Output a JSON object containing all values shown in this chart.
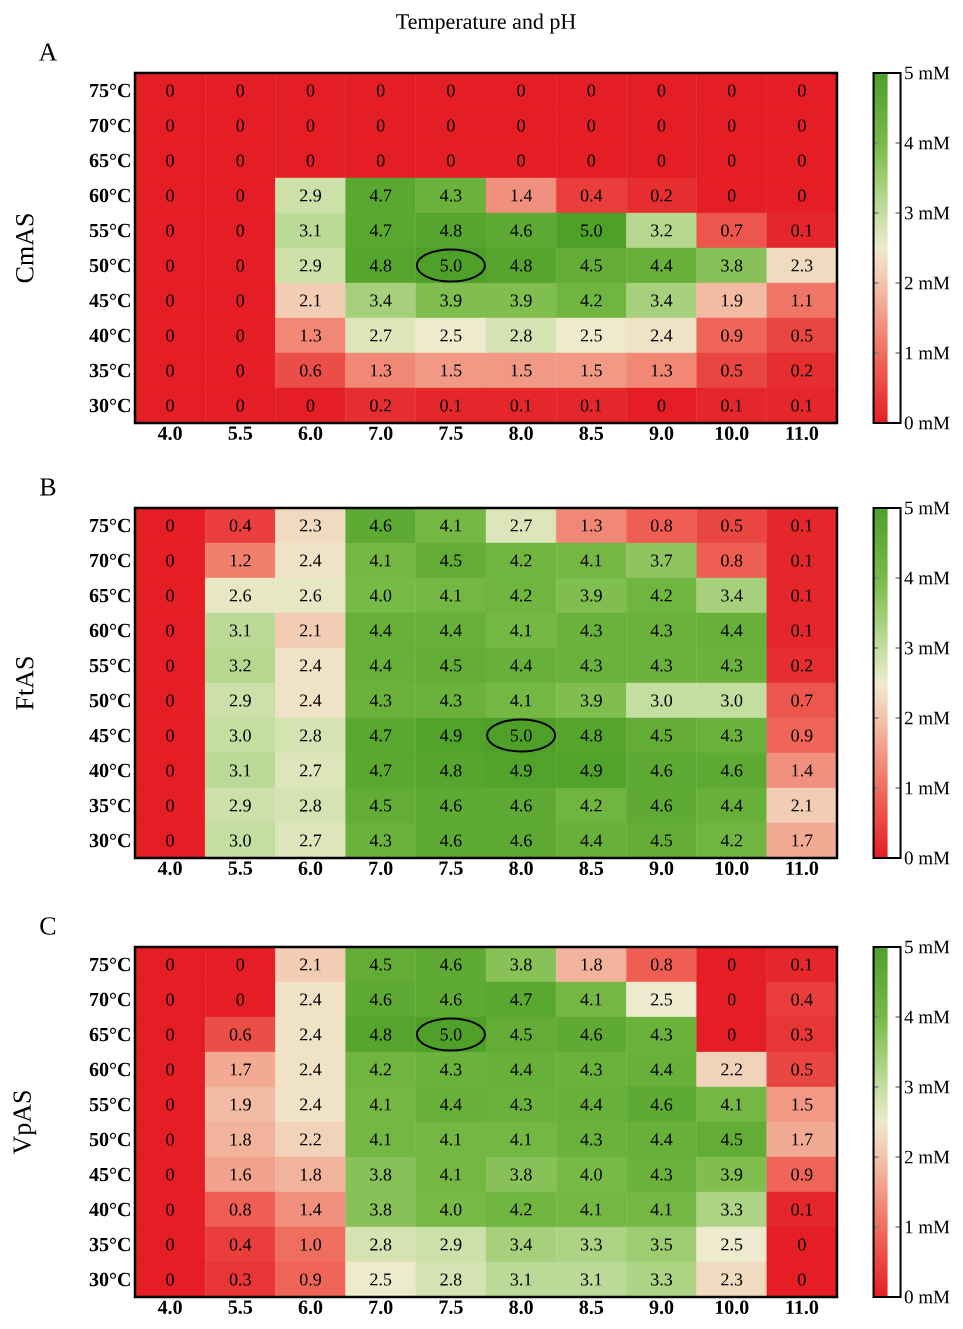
{
  "chart_data": [
    {
      "type": "heatmap",
      "title": "Temperature and pH",
      "ylabel": "CmAS",
      "annotations": [
        "A",
        {
          "x": "7.5",
          "y": "50°C"
        }
      ],
      "categories": [
        "4.0",
        "5.5",
        "6.0",
        "7.0",
        "7.5",
        "8.0",
        "8.5",
        "9.0",
        "10.0",
        "11.0"
      ],
      "y_categories": [
        "75°C",
        "70°C",
        "65°C",
        "60°C",
        "55°C",
        "50°C",
        "45°C",
        "40°C",
        "35°C",
        "30°C"
      ],
      "cells": [
        [
          0,
          0,
          0,
          0,
          0,
          0,
          0,
          0,
          0,
          0
        ],
        [
          0,
          0,
          0,
          0,
          0,
          0,
          0,
          0,
          0,
          0
        ],
        [
          0,
          0,
          0,
          0,
          0,
          0,
          0,
          0,
          0,
          0
        ],
        [
          0,
          0,
          2.9,
          4.7,
          4.3,
          1.4,
          0.4,
          0.2,
          0,
          0
        ],
        [
          0,
          0,
          3.1,
          4.7,
          4.8,
          4.6,
          5.0,
          3.2,
          0.7,
          0.1
        ],
        [
          0,
          0,
          2.9,
          4.8,
          5.0,
          4.8,
          4.5,
          4.4,
          3.8,
          2.3
        ],
        [
          0,
          0,
          2.1,
          3.4,
          3.9,
          3.9,
          4.2,
          3.4,
          1.9,
          1.1
        ],
        [
          0,
          0,
          1.3,
          2.7,
          2.5,
          2.8,
          2.5,
          2.4,
          0.9,
          0.5
        ],
        [
          0,
          0,
          0.6,
          1.3,
          1.5,
          1.5,
          1.5,
          1.3,
          0.5,
          0.2
        ],
        [
          0,
          0,
          0,
          0.2,
          0.1,
          0.1,
          0.1,
          0,
          0.1,
          0.1
        ]
      ],
      "cell_labels": [
        [
          "0",
          "0",
          "0",
          "0",
          "0",
          "0",
          "0",
          "0",
          "0",
          "0"
        ],
        [
          "0",
          "0",
          "0",
          "0",
          "0",
          "0",
          "0",
          "0",
          "0",
          "0"
        ],
        [
          "0",
          "0",
          "0",
          "0",
          "0",
          "0",
          "0",
          "0",
          "0",
          "0"
        ],
        [
          "0",
          "0",
          "2.9",
          "4.7",
          "4.3",
          "1.4",
          "0.4",
          "0.2",
          "0",
          "0"
        ],
        [
          "0",
          "0",
          "3.1",
          "4.7",
          "4.8",
          "4.6",
          "5.0",
          "3.2",
          "0.7",
          "0.1"
        ],
        [
          "0",
          "0",
          "2.9",
          "4.8",
          "5.0",
          "4.8",
          "4.5",
          "4.4",
          "3.8",
          "2.3"
        ],
        [
          "0",
          "0",
          "2.1",
          "3.4",
          "3.9",
          "3.9",
          "4.2",
          "3.4",
          "1.9",
          "1.1"
        ],
        [
          "0",
          "0",
          "1.3",
          "2.7",
          "2.5",
          "2.8",
          "2.5",
          "2.4",
          "0.9",
          "0.5"
        ],
        [
          "0",
          "0",
          "0.6",
          "1.3",
          "1.5",
          "1.5",
          "1.5",
          "1.3",
          "0.5",
          "0.2"
        ],
        [
          "0",
          "0",
          "0",
          "0.2",
          "0.1",
          "0.1",
          "0.1",
          "0",
          "0.1",
          "0.1"
        ]
      ],
      "clim": [
        0,
        5
      ],
      "cticks": [
        {
          "value": 0,
          "label": "0 mM"
        },
        {
          "value": 1,
          "label": "1 mM"
        },
        {
          "value": 2,
          "label": "2 mM"
        },
        {
          "value": 3,
          "label": "3 mM"
        },
        {
          "value": 4,
          "label": "4 mM"
        },
        {
          "value": 5,
          "label": "5 mM"
        }
      ]
    },
    {
      "type": "heatmap",
      "ylabel": "FtAS",
      "annotations": [
        "B",
        {
          "x": "8.0",
          "y": "45°C"
        }
      ],
      "categories": [
        "4.0",
        "5.5",
        "6.0",
        "7.0",
        "7.5",
        "8.0",
        "8.5",
        "9.0",
        "10.0",
        "11.0"
      ],
      "y_categories": [
        "75°C",
        "70°C",
        "65°C",
        "60°C",
        "55°C",
        "50°C",
        "45°C",
        "40°C",
        "35°C",
        "30°C"
      ],
      "cells": [
        [
          0,
          0.4,
          2.3,
          4.6,
          4.1,
          2.7,
          1.3,
          0.8,
          0.5,
          0.1
        ],
        [
          0,
          1.2,
          2.4,
          4.1,
          4.5,
          4.2,
          4.1,
          3.7,
          0.8,
          0.1
        ],
        [
          0,
          2.6,
          2.6,
          4.0,
          4.1,
          4.2,
          3.9,
          4.2,
          3.4,
          0.1
        ],
        [
          0,
          3.1,
          2.1,
          4.4,
          4.4,
          4.1,
          4.3,
          4.3,
          4.4,
          0.1
        ],
        [
          0,
          3.2,
          2.4,
          4.4,
          4.5,
          4.4,
          4.3,
          4.3,
          4.3,
          0.2
        ],
        [
          0,
          2.9,
          2.4,
          4.3,
          4.3,
          4.1,
          3.9,
          3.0,
          3.0,
          0.7
        ],
        [
          0,
          3.0,
          2.8,
          4.7,
          4.9,
          5.0,
          4.8,
          4.5,
          4.3,
          0.9
        ],
        [
          0,
          3.1,
          2.7,
          4.7,
          4.8,
          4.9,
          4.9,
          4.6,
          4.6,
          1.4
        ],
        [
          0,
          2.9,
          2.8,
          4.5,
          4.6,
          4.6,
          4.2,
          4.6,
          4.4,
          2.1
        ],
        [
          0,
          3.0,
          2.7,
          4.3,
          4.6,
          4.6,
          4.4,
          4.5,
          4.2,
          1.7
        ]
      ],
      "cell_labels": [
        [
          "0",
          "0.4",
          "2.3",
          "4.6",
          "4.1",
          "2.7",
          "1.3",
          "0.8",
          "0.5",
          "0.1"
        ],
        [
          "0",
          "1.2",
          "2.4",
          "4.1",
          "4.5",
          "4.2",
          "4.1",
          "3.7",
          "0.8",
          "0.1"
        ],
        [
          "0",
          "2.6",
          "2.6",
          "4.0",
          "4.1",
          "4.2",
          "3.9",
          "4.2",
          "3.4",
          "0.1"
        ],
        [
          "0",
          "3.1",
          "2.1",
          "4.4",
          "4.4",
          "4.1",
          "4.3",
          "4.3",
          "4.4",
          "0.1"
        ],
        [
          "0",
          "3.2",
          "2.4",
          "4.4",
          "4.5",
          "4.4",
          "4.3",
          "4.3",
          "4.3",
          "0.2"
        ],
        [
          "0",
          "2.9",
          "2.4",
          "4.3",
          "4.3",
          "4.1",
          "3.9",
          "3.0",
          "3.0",
          "0.7"
        ],
        [
          "0",
          "3.0",
          "2.8",
          "4.7",
          "4.9",
          "5.0",
          "4.8",
          "4.5",
          "4.3",
          "0.9"
        ],
        [
          "0",
          "3.1",
          "2.7",
          "4.7",
          "4.8",
          "4.9",
          "4.9",
          "4.6",
          "4.6",
          "1.4"
        ],
        [
          "0",
          "2.9",
          "2.8",
          "4.5",
          "4.6",
          "4.6",
          "4.2",
          "4.6",
          "4.4",
          "2.1"
        ],
        [
          "0",
          "3.0",
          "2.7",
          "4.3",
          "4.6",
          "4.6",
          "4.4",
          "4.5",
          "4.2",
          "1.7"
        ]
      ],
      "clim": [
        0,
        5
      ],
      "cticks": [
        {
          "value": 0,
          "label": "0 mM"
        },
        {
          "value": 1,
          "label": "1 mM"
        },
        {
          "value": 2,
          "label": "2 mM"
        },
        {
          "value": 3,
          "label": "3 mM"
        },
        {
          "value": 4,
          "label": "4 mM"
        },
        {
          "value": 5,
          "label": "5 mM"
        }
      ]
    },
    {
      "type": "heatmap",
      "ylabel": "VpAS",
      "annotations": [
        "C",
        {
          "x": "7.5",
          "y": "65°C"
        }
      ],
      "categories": [
        "4.0",
        "5.5",
        "6.0",
        "7.0",
        "7.5",
        "8.0",
        "8.5",
        "9.0",
        "10.0",
        "11.0"
      ],
      "y_categories": [
        "75°C",
        "70°C",
        "65°C",
        "60°C",
        "55°C",
        "50°C",
        "45°C",
        "40°C",
        "35°C",
        "30°C"
      ],
      "cells": [
        [
          0,
          0,
          2.1,
          4.5,
          4.6,
          3.8,
          1.8,
          0.8,
          0,
          0.1
        ],
        [
          0,
          0,
          2.4,
          4.6,
          4.6,
          4.7,
          4.1,
          2.5,
          0,
          0.4
        ],
        [
          0,
          0.6,
          2.4,
          4.8,
          5.0,
          4.5,
          4.6,
          4.3,
          0,
          0.3
        ],
        [
          0,
          1.7,
          2.4,
          4.2,
          4.3,
          4.4,
          4.3,
          4.4,
          2.2,
          0.5
        ],
        [
          0,
          1.9,
          2.4,
          4.1,
          4.4,
          4.3,
          4.4,
          4.6,
          4.1,
          1.5
        ],
        [
          0,
          1.8,
          2.2,
          4.1,
          4.1,
          4.1,
          4.3,
          4.4,
          4.5,
          1.7
        ],
        [
          0,
          1.6,
          1.8,
          3.8,
          4.1,
          3.8,
          4.0,
          4.3,
          3.9,
          0.9
        ],
        [
          0,
          0.8,
          1.4,
          3.8,
          4.0,
          4.2,
          4.1,
          4.1,
          3.3,
          0.1
        ],
        [
          0,
          0.4,
          1.0,
          2.8,
          2.9,
          3.4,
          3.3,
          3.5,
          2.5,
          0
        ],
        [
          0,
          0.3,
          0.9,
          2.5,
          2.8,
          3.1,
          3.1,
          3.3,
          2.3,
          0
        ]
      ],
      "cell_labels": [
        [
          "0",
          "0",
          "2.1",
          "4.5",
          "4.6",
          "3.8",
          "1.8",
          "0.8",
          "0",
          "0.1"
        ],
        [
          "0",
          "0",
          "2.4",
          "4.6",
          "4.6",
          "4.7",
          "4.1",
          "2.5",
          "0",
          "0.4"
        ],
        [
          "0",
          "0.6",
          "2.4",
          "4.8",
          "5.0",
          "4.5",
          "4.6",
          "4.3",
          "0",
          "0.3"
        ],
        [
          "0",
          "1.7",
          "2.4",
          "4.2",
          "4.3",
          "4.4",
          "4.3",
          "4.4",
          "2.2",
          "0.5"
        ],
        [
          "0",
          "1.9",
          "2.4",
          "4.1",
          "4.4",
          "4.3",
          "4.4",
          "4.6",
          "4.1",
          "1.5"
        ],
        [
          "0",
          "1.8",
          "2.2",
          "4.1",
          "4.1",
          "4.1",
          "4.3",
          "4.4",
          "4.5",
          "1.7"
        ],
        [
          "0",
          "1.6",
          "1.8",
          "3.8",
          "4.1",
          "3.8",
          "4.0",
          "4.3",
          "3.9",
          "0.9"
        ],
        [
          "0",
          "0.8",
          "1.4",
          "3.8",
          "4.0",
          "4.2",
          "4.1",
          "4.1",
          "3.3",
          "0.1"
        ],
        [
          "0",
          "0.4",
          "1.0",
          "2.8",
          "2.9",
          "3.4",
          "3.3",
          "3.5",
          "2.5",
          "0"
        ],
        [
          "0",
          "0.3",
          "0.9",
          "2.5",
          "2.8",
          "3.1",
          "3.1",
          "3.3",
          "2.3",
          "0"
        ]
      ],
      "clim": [
        0,
        5
      ],
      "cticks": [
        {
          "value": 0,
          "label": "0 mM"
        },
        {
          "value": 1,
          "label": "1 mM"
        },
        {
          "value": 2,
          "label": "2 mM"
        },
        {
          "value": 3,
          "label": "3 mM"
        },
        {
          "value": 4,
          "label": "4 mM"
        },
        {
          "value": 5,
          "label": "5 mM"
        }
      ]
    }
  ]
}
